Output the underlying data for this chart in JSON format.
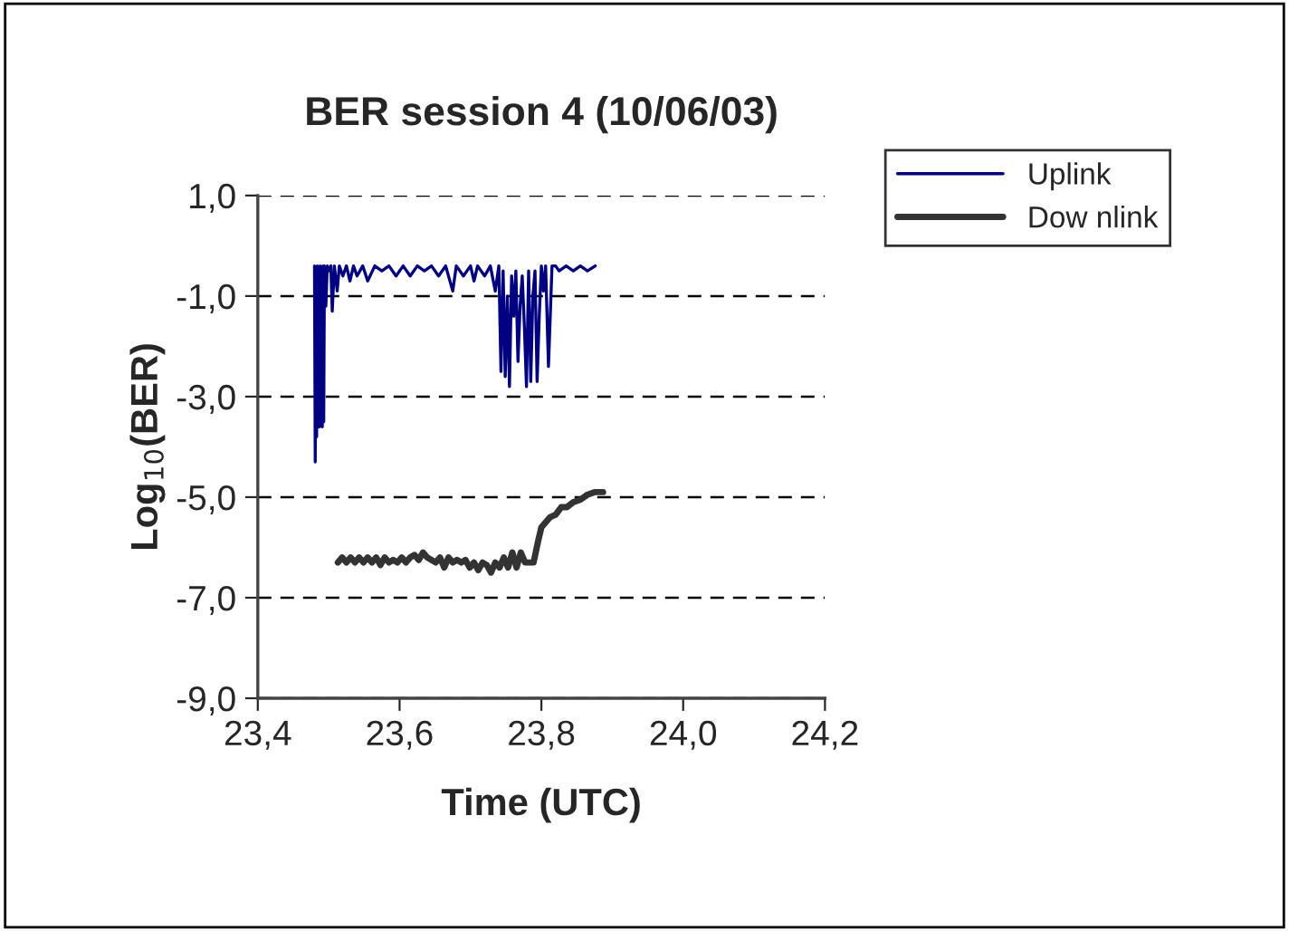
{
  "chart_data": {
    "type": "line",
    "title": "BER session 4 (10/06/03)",
    "xlabel": "Time (UTC)",
    "ylabel": "Log$_{10}$(BER)",
    "xlim": [
      23.4,
      24.2
    ],
    "ylim": [
      -9,
      1
    ],
    "xticks": [
      {
        "value": 23.4,
        "label": "23,4"
      },
      {
        "value": 23.6,
        "label": "23,6"
      },
      {
        "value": 23.8,
        "label": "23,8"
      },
      {
        "value": 24.0,
        "label": "24,0"
      },
      {
        "value": 24.2,
        "label": "24,2"
      }
    ],
    "yticks": [
      {
        "value": -9,
        "label": "-9,0"
      },
      {
        "value": -7,
        "label": "-7,0"
      },
      {
        "value": -5,
        "label": "-5,0"
      },
      {
        "value": -3,
        "label": "-3,0"
      },
      {
        "value": -1,
        "label": "-1,0"
      },
      {
        "value": 1,
        "label": "1,0"
      }
    ],
    "grid": "y",
    "legend": "right",
    "marker": "none",
    "line_style": "solid",
    "series": [
      {
        "name": "Uplink",
        "color": "#000080",
        "x": [
          23.48,
          23.481,
          23.482,
          23.483,
          23.484,
          23.485,
          23.486,
          23.487,
          23.488,
          23.489,
          23.49,
          23.491,
          23.492,
          23.493,
          23.494,
          23.496,
          23.498,
          23.5,
          23.503,
          23.505,
          23.508,
          23.512,
          23.515,
          23.52,
          23.525,
          23.53,
          23.535,
          23.54,
          23.548,
          23.555,
          23.565,
          23.575,
          23.585,
          23.595,
          23.605,
          23.615,
          23.625,
          23.635,
          23.645,
          23.655,
          23.665,
          23.675,
          23.68,
          23.69,
          23.7,
          23.705,
          23.71,
          23.72,
          23.728,
          23.735,
          23.74,
          23.743,
          23.746,
          23.749,
          23.752,
          23.755,
          23.758,
          23.761,
          23.764,
          23.767,
          23.77,
          23.773,
          23.776,
          23.779,
          23.782,
          23.785,
          23.788,
          23.791,
          23.794,
          23.797,
          23.8,
          23.803,
          23.806,
          23.81,
          23.815,
          23.82,
          23.825,
          23.835,
          23.845,
          23.855,
          23.865,
          23.876
        ],
        "values": [
          -0.4,
          -4.3,
          -1.0,
          -3.8,
          -0.4,
          -3.6,
          -2.0,
          -3.6,
          -0.4,
          -3.5,
          -1.5,
          -3.6,
          -0.4,
          -3.5,
          -0.4,
          -1.2,
          -0.4,
          -0.5,
          -0.4,
          -1.3,
          -0.4,
          -0.9,
          -0.4,
          -0.6,
          -0.4,
          -0.7,
          -0.4,
          -0.6,
          -0.4,
          -0.7,
          -0.4,
          -0.5,
          -0.4,
          -0.6,
          -0.4,
          -0.6,
          -0.4,
          -0.5,
          -0.4,
          -0.6,
          -0.4,
          -0.9,
          -0.4,
          -0.6,
          -0.4,
          -0.7,
          -0.4,
          -0.6,
          -0.4,
          -0.9,
          -0.4,
          -2.5,
          -0.5,
          -2.6,
          -1.0,
          -2.8,
          -0.6,
          -1.4,
          -0.5,
          -2.3,
          -1.2,
          -0.6,
          -1.6,
          -2.8,
          -0.5,
          -2.7,
          -1.0,
          -0.5,
          -2.7,
          -1.4,
          -0.4,
          -0.9,
          -0.4,
          -2.4,
          -0.4,
          -0.4,
          -0.5,
          -0.4,
          -0.5,
          -0.4,
          -0.5,
          -0.4
        ]
      },
      {
        "name": "Dow nlink",
        "color": "#333333",
        "x": [
          23.513,
          23.519,
          23.525,
          23.531,
          23.537,
          23.543,
          23.549,
          23.555,
          23.561,
          23.567,
          23.573,
          23.579,
          23.585,
          23.591,
          23.597,
          23.603,
          23.609,
          23.615,
          23.621,
          23.627,
          23.633,
          23.639,
          23.645,
          23.651,
          23.657,
          23.663,
          23.669,
          23.675,
          23.681,
          23.687,
          23.693,
          23.699,
          23.705,
          23.711,
          23.717,
          23.723,
          23.729,
          23.735,
          23.741,
          23.747,
          23.753,
          23.759,
          23.765,
          23.771,
          23.777,
          23.783,
          23.789,
          23.795,
          23.8,
          23.806,
          23.812,
          23.82,
          23.828,
          23.836,
          23.845,
          23.855,
          23.865,
          23.875,
          23.887
        ],
        "values": [
          -6.3,
          -6.2,
          -6.3,
          -6.2,
          -6.3,
          -6.2,
          -6.3,
          -6.2,
          -6.3,
          -6.2,
          -6.35,
          -6.2,
          -6.3,
          -6.25,
          -6.3,
          -6.2,
          -6.3,
          -6.2,
          -6.15,
          -6.25,
          -6.1,
          -6.2,
          -6.25,
          -6.3,
          -6.2,
          -6.4,
          -6.2,
          -6.3,
          -6.25,
          -6.3,
          -6.25,
          -6.4,
          -6.3,
          -6.45,
          -6.3,
          -6.35,
          -6.5,
          -6.3,
          -6.4,
          -6.2,
          -6.4,
          -6.1,
          -6.4,
          -6.1,
          -6.3,
          -6.3,
          -6.3,
          -5.9,
          -5.6,
          -5.5,
          -5.4,
          -5.35,
          -5.2,
          -5.2,
          -5.1,
          -5.05,
          -4.95,
          -4.9,
          -4.9
        ]
      }
    ]
  }
}
